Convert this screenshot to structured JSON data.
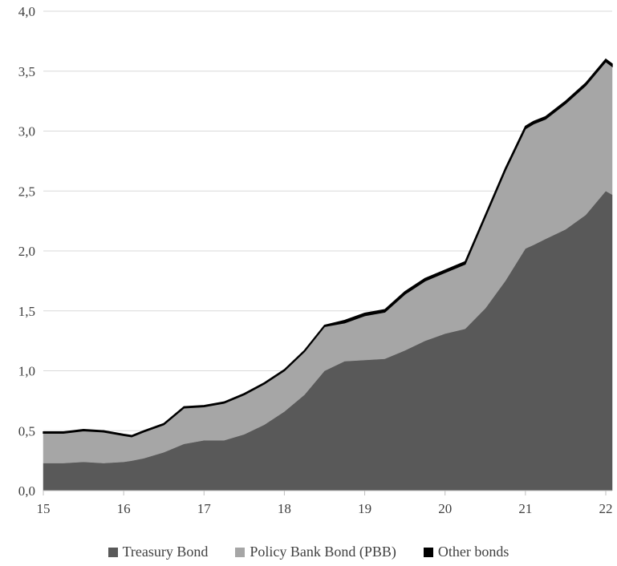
{
  "chart_data": {
    "type": "area",
    "stacked": true,
    "x_ticks": [
      "15",
      "16",
      "17",
      "18",
      "19",
      "20",
      "21",
      "22"
    ],
    "y_ticks": [
      "0,0",
      "0,5",
      "1,0",
      "1,5",
      "2,0",
      "2,5",
      "3,0",
      "3,5",
      "4,0"
    ],
    "xlim": [
      15,
      22.08
    ],
    "ylim": [
      0,
      4
    ],
    "grid": true,
    "legend_position": "bottom",
    "x": [
      15.0,
      15.25,
      15.5,
      15.75,
      16.0,
      16.1,
      16.25,
      16.5,
      16.75,
      17.0,
      17.25,
      17.5,
      17.75,
      18.0,
      18.25,
      18.5,
      18.75,
      19.0,
      19.25,
      19.5,
      19.75,
      20.0,
      20.25,
      20.5,
      20.75,
      21.0,
      21.1,
      21.25,
      21.5,
      21.75,
      22.0,
      22.08
    ],
    "series": [
      {
        "name": "Treasury Bond",
        "color": "#595959",
        "values": [
          0.23,
          0.23,
          0.24,
          0.23,
          0.24,
          0.25,
          0.27,
          0.32,
          0.39,
          0.42,
          0.42,
          0.47,
          0.55,
          0.66,
          0.8,
          1.0,
          1.08,
          1.09,
          1.1,
          1.17,
          1.25,
          1.31,
          1.35,
          1.52,
          1.75,
          2.02,
          2.05,
          2.1,
          2.18,
          2.3,
          2.5,
          2.47
        ]
      },
      {
        "name": "Policy Bank Bond (PBB)",
        "color": "#a6a6a6",
        "values": [
          0.25,
          0.25,
          0.26,
          0.26,
          0.22,
          0.2,
          0.22,
          0.23,
          0.3,
          0.28,
          0.31,
          0.33,
          0.34,
          0.34,
          0.36,
          0.37,
          0.32,
          0.37,
          0.39,
          0.47,
          0.5,
          0.51,
          0.54,
          0.76,
          0.92,
          1.0,
          1.01,
          1.0,
          1.05,
          1.08,
          1.08,
          1.07
        ]
      },
      {
        "name": "Other bonds",
        "color": "#000000",
        "values": [
          0.01,
          0.01,
          0.01,
          0.01,
          0.01,
          0.01,
          0.01,
          0.01,
          0.01,
          0.01,
          0.01,
          0.01,
          0.01,
          0.01,
          0.01,
          0.01,
          0.02,
          0.02,
          0.02,
          0.02,
          0.02,
          0.02,
          0.02,
          0.02,
          0.02,
          0.02,
          0.02,
          0.02,
          0.02,
          0.02,
          0.02,
          0.02
        ]
      }
    ]
  }
}
